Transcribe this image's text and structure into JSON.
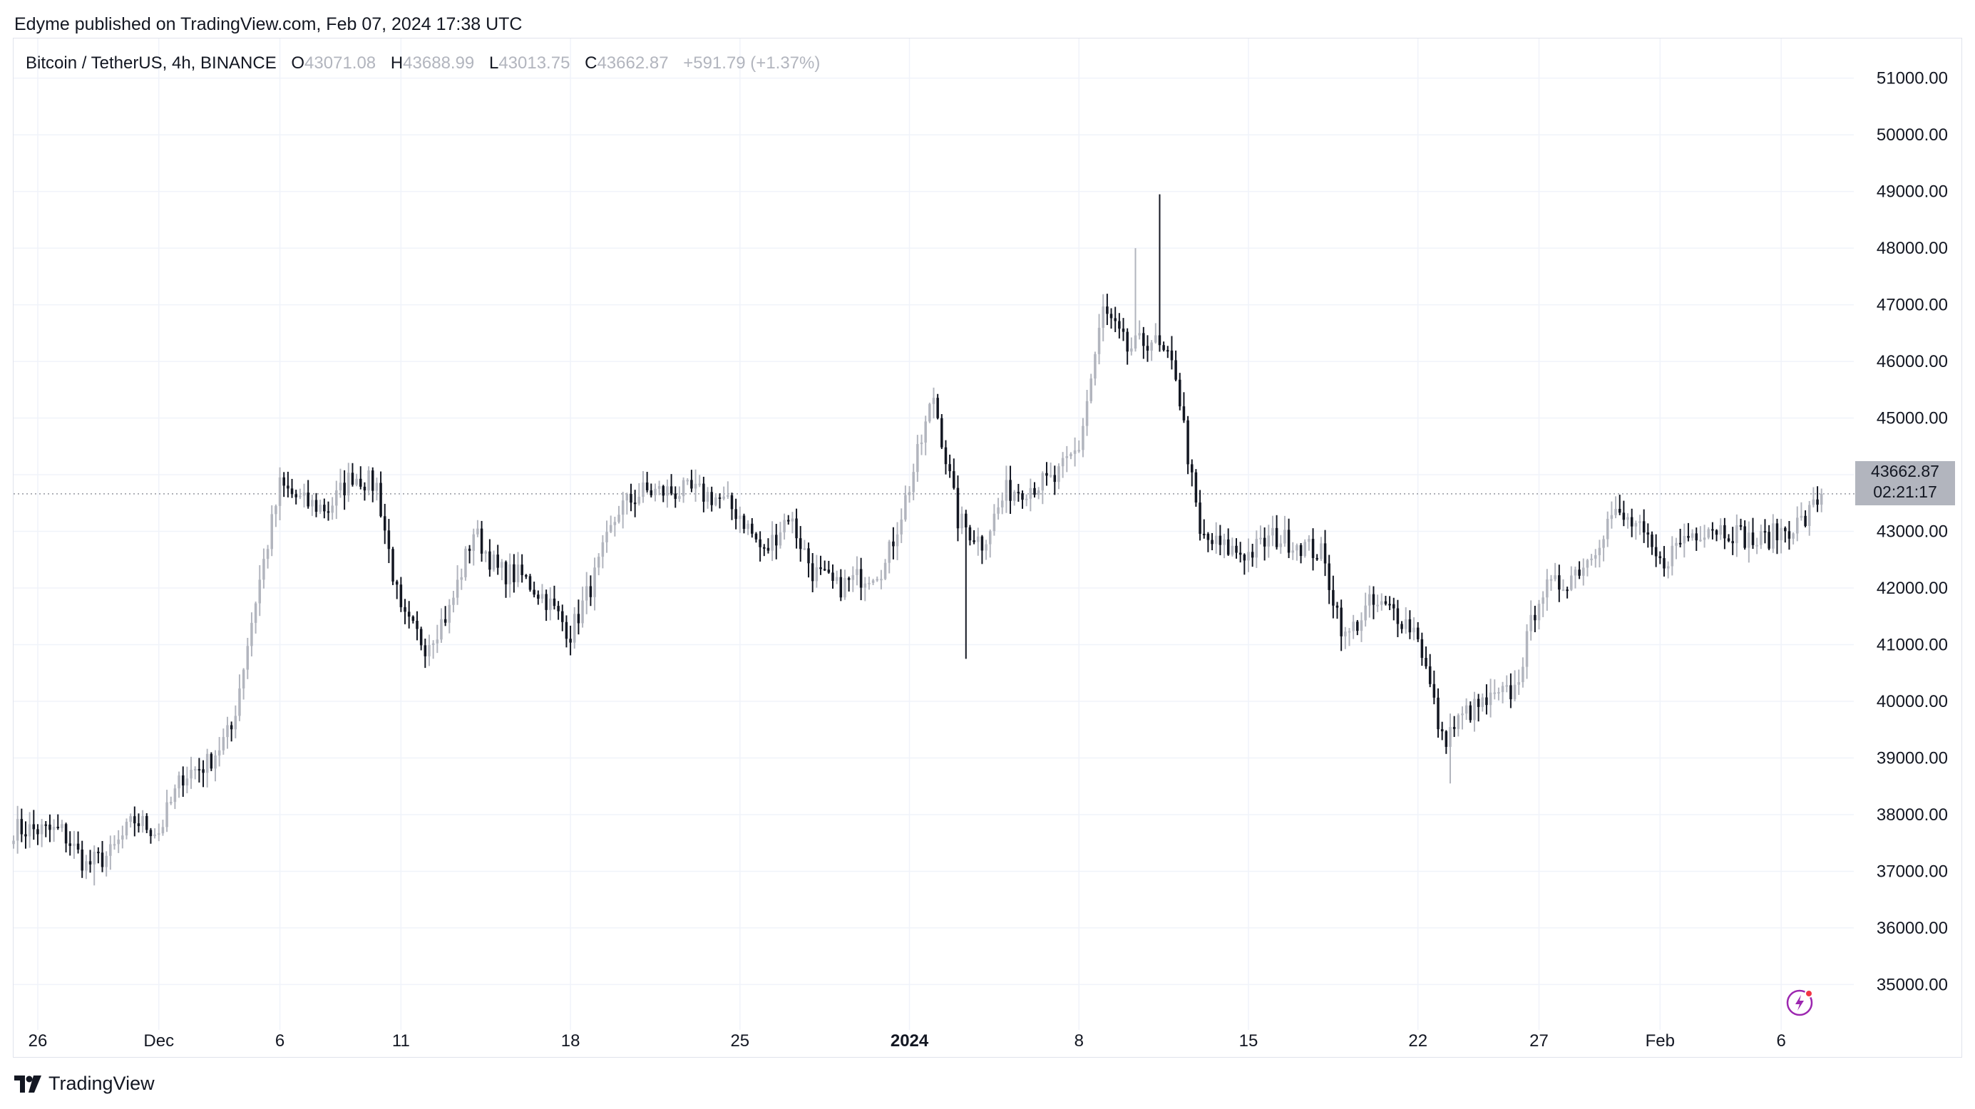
{
  "publisher_line": "Edyme published on TradingView.com, Feb 07, 2024 17:38 UTC",
  "brand": "TradingView",
  "icons": {
    "logo": "tradingview-logo-icon",
    "bolt": "lightning-bolt-icon"
  },
  "colors": {
    "up": "#b2b5be",
    "down": "#131722",
    "grid": "#f0f3fa",
    "axis_text": "#131722",
    "accent": "#9c27b0",
    "notify": "#f23645"
  },
  "legend": {
    "symbol": "Bitcoin / TetherUS, 4h, BINANCE",
    "o_label": "O",
    "o_value": "43071.08",
    "h_label": "H",
    "h_value": "43688.99",
    "l_label": "L",
    "l_value": "43013.75",
    "c_label": "C",
    "c_value": "43662.87",
    "change": "+591.79 (+1.37%)"
  },
  "price_tag": {
    "price": "43662.87",
    "countdown": "02:21:17"
  },
  "chart_data": {
    "type": "candlestick",
    "title": "Bitcoin / TetherUS, 4h, BINANCE",
    "ylim": [
      34200,
      51700
    ],
    "y_ticks": [
      "51000.00",
      "50000.00",
      "49000.00",
      "48000.00",
      "47000.00",
      "46000.00",
      "45000.00",
      "44000.00",
      "43000.00",
      "42000.00",
      "41000.00",
      "40000.00",
      "39000.00",
      "38000.00",
      "37000.00",
      "36000.00",
      "35000.00"
    ],
    "x_ticks": [
      {
        "label": "26",
        "date": "2023-11-26"
      },
      {
        "label": "Dec",
        "date": "2023-12-01"
      },
      {
        "label": "6",
        "date": "2023-12-06"
      },
      {
        "label": "11",
        "date": "2023-12-11"
      },
      {
        "label": "18",
        "date": "2023-12-18"
      },
      {
        "label": "25",
        "date": "2023-12-25"
      },
      {
        "label": "2024",
        "date": "2024-01-01",
        "bold": true
      },
      {
        "label": "8",
        "date": "2024-01-08"
      },
      {
        "label": "15",
        "date": "2024-01-15"
      },
      {
        "label": "22",
        "date": "2024-01-22"
      },
      {
        "label": "27",
        "date": "2024-01-27"
      },
      {
        "label": "Feb",
        "date": "2024-02-01"
      },
      {
        "label": "6",
        "date": "2024-02-06"
      }
    ],
    "x_range": [
      "2023-11-25",
      "2024-02-09"
    ],
    "grid": true,
    "last_price": 43662.87,
    "keypoints": [
      [
        "2023-11-25",
        37750
      ],
      [
        "2023-11-27",
        37700
      ],
      [
        "2023-11-28",
        37100
      ],
      [
        "2023-11-29",
        37300
      ],
      [
        "2023-11-30",
        37900
      ],
      [
        "2023-12-01",
        37700
      ],
      [
        "2023-12-02",
        38700
      ],
      [
        "2023-12-03",
        38900
      ],
      [
        "2023-12-04",
        39500
      ],
      [
        "2023-12-05",
        41800
      ],
      [
        "2023-12-06",
        43800
      ],
      [
        "2023-12-07",
        43500
      ],
      [
        "2023-12-08",
        43400
      ],
      [
        "2023-12-09",
        44000
      ],
      [
        "2023-12-10",
        43800
      ],
      [
        "2023-12-11",
        41500
      ],
      [
        "2023-12-12",
        41000
      ],
      [
        "2023-12-13",
        41600
      ],
      [
        "2023-12-14",
        43000
      ],
      [
        "2023-12-15",
        42300
      ],
      [
        "2023-12-16",
        42200
      ],
      [
        "2023-12-17",
        41800
      ],
      [
        "2023-12-18",
        41200
      ],
      [
        "2023-12-19",
        42200
      ],
      [
        "2023-12-20",
        43400
      ],
      [
        "2023-12-21",
        43700
      ],
      [
        "2023-12-22",
        43700
      ],
      [
        "2023-12-23",
        43700
      ],
      [
        "2023-12-24",
        43600
      ],
      [
        "2023-12-25",
        43300
      ],
      [
        "2023-12-26",
        42600
      ],
      [
        "2023-12-27",
        43300
      ],
      [
        "2023-12-28",
        42300
      ],
      [
        "2023-12-29",
        42000
      ],
      [
        "2023-12-30",
        42200
      ],
      [
        "2023-12-31",
        42400
      ],
      [
        "2024-01-01",
        43800
      ],
      [
        "2024-01-02",
        45400
      ],
      [
        "2024-01-03",
        43200
      ],
      [
        "2024-01-04",
        42800
      ],
      [
        "2024-01-05",
        43700
      ],
      [
        "2024-01-06",
        43800
      ],
      [
        "2024-01-07",
        43900
      ],
      [
        "2024-01-08",
        44500
      ],
      [
        "2024-01-09",
        46900
      ],
      [
        "2024-01-10",
        46200
      ],
      [
        "2024-01-11",
        46400
      ],
      [
        "2024-01-12",
        45800
      ],
      [
        "2024-01-13",
        42900
      ],
      [
        "2024-01-14",
        42700
      ],
      [
        "2024-01-15",
        42600
      ],
      [
        "2024-01-16",
        42900
      ],
      [
        "2024-01-17",
        42800
      ],
      [
        "2024-01-18",
        42600
      ],
      [
        "2024-01-19",
        41100
      ],
      [
        "2024-01-20",
        41700
      ],
      [
        "2024-01-21",
        41600
      ],
      [
        "2024-01-22",
        41200
      ],
      [
        "2024-01-23",
        39300
      ],
      [
        "2024-01-24",
        39800
      ],
      [
        "2024-01-25",
        40000
      ],
      [
        "2024-01-26",
        40200
      ],
      [
        "2024-01-27",
        41900
      ],
      [
        "2024-01-28",
        42100
      ],
      [
        "2024-01-29",
        42500
      ],
      [
        "2024-01-30",
        43300
      ],
      [
        "2024-01-31",
        43100
      ],
      [
        "2024-02-01",
        42400
      ],
      [
        "2024-02-02",
        42900
      ],
      [
        "2024-02-03",
        43100
      ],
      [
        "2024-02-04",
        43000
      ],
      [
        "2024-02-05",
        42800
      ],
      [
        "2024-02-06",
        43000
      ],
      [
        "2024-02-07",
        43200
      ],
      [
        "2024-02-07T16:00",
        43662.87
      ]
    ],
    "extremes": [
      {
        "date": "2023-11-28",
        "low": 36750
      },
      {
        "date": "2024-01-03",
        "low": 40750
      },
      {
        "date": "2024-01-10",
        "high": 48000
      },
      {
        "date": "2024-01-11",
        "high": 48950
      },
      {
        "date": "2024-01-23",
        "low": 38550
      }
    ]
  }
}
